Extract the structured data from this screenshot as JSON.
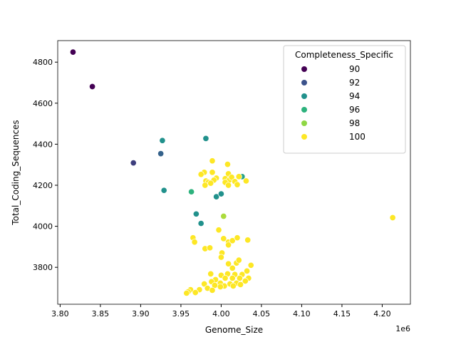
{
  "chart_data": {
    "type": "scatter",
    "xlabel": "Genome_Size",
    "ylabel": "Total_Coding_Sequences",
    "x_offset_label": "1e6",
    "xlim": [
      3.797,
      4.235
    ],
    "ylim": [
      3620,
      4905
    ],
    "x_ticks": [
      "3.80",
      "3.85",
      "3.90",
      "3.95",
      "4.00",
      "4.05",
      "4.10",
      "4.15",
      "4.20"
    ],
    "y_ticks": [
      "3800",
      "4000",
      "4200",
      "4400",
      "4600",
      "4800"
    ],
    "legend": {
      "title": "Completeness_Specific",
      "position": "top-right",
      "entries": [
        {
          "label": "90",
          "color": "#440154"
        },
        {
          "label": "92",
          "color": "#3b528b"
        },
        {
          "label": "94",
          "color": "#21918c"
        },
        {
          "label": "96",
          "color": "#2db27d"
        },
        {
          "label": "98",
          "color": "#8fd744"
        },
        {
          "label": "100",
          "color": "#fde725"
        }
      ]
    },
    "points": [
      [
        3.816,
        4849,
        90
      ],
      [
        3.84,
        4681,
        90
      ],
      [
        3.891,
        4309,
        91.5
      ],
      [
        3.925,
        4354,
        92.5
      ],
      [
        3.927,
        4418,
        94
      ],
      [
        3.981,
        4428,
        94
      ],
      [
        3.929,
        4175,
        94
      ],
      [
        3.969,
        4060,
        94
      ],
      [
        3.975,
        4014,
        94
      ],
      [
        3.994,
        4144,
        94
      ],
      [
        4.0,
        4158,
        94
      ],
      [
        4.026,
        4242,
        95
      ],
      [
        3.963,
        4168,
        96
      ],
      [
        4.003,
        4049,
        98.5
      ],
      [
        4.213,
        4042,
        100
      ],
      [
        3.989,
        4319,
        100
      ],
      [
        4.008,
        4302,
        100
      ],
      [
        3.979,
        4263,
        100
      ],
      [
        3.975,
        4253,
        100
      ],
      [
        3.989,
        4263,
        100
      ],
      [
        4.009,
        4256,
        100
      ],
      [
        3.994,
        4235,
        100
      ],
      [
        3.991,
        4225,
        100
      ],
      [
        3.981,
        4221,
        100
      ],
      [
        3.984,
        4214,
        100
      ],
      [
        3.987,
        4210,
        100
      ],
      [
        3.98,
        4200,
        100
      ],
      [
        4.005,
        4232,
        100
      ],
      [
        4.01,
        4225,
        100
      ],
      [
        4.013,
        4239,
        100
      ],
      [
        4.022,
        4242,
        100
      ],
      [
        4.005,
        4214,
        100
      ],
      [
        4.009,
        4200,
        100
      ],
      [
        4.017,
        4218,
        100
      ],
      [
        4.02,
        4203,
        100
      ],
      [
        4.031,
        4221,
        100
      ],
      [
        3.997,
        3982,
        100
      ],
      [
        3.965,
        3944,
        100
      ],
      [
        3.967,
        3923,
        100
      ],
      [
        3.98,
        3891,
        100
      ],
      [
        3.986,
        3895,
        100
      ],
      [
        4.003,
        3940,
        100
      ],
      [
        4.009,
        3923,
        100
      ],
      [
        4.014,
        3930,
        100
      ],
      [
        4.02,
        3944,
        100
      ],
      [
        4.033,
        3933,
        100
      ],
      [
        4.009,
        3909,
        100
      ],
      [
        4.001,
        3870,
        100
      ],
      [
        4.0,
        3849,
        100
      ],
      [
        4.009,
        3817,
        100
      ],
      [
        4.019,
        3821,
        100
      ],
      [
        4.022,
        3835,
        100
      ],
      [
        4.037,
        3810,
        100
      ],
      [
        4.014,
        3796,
        100
      ],
      [
        3.987,
        3768,
        100
      ],
      [
        4.0,
        3761,
        100
      ],
      [
        4.008,
        3768,
        100
      ],
      [
        4.017,
        3765,
        100
      ],
      [
        4.026,
        3765,
        100
      ],
      [
        4.032,
        3782,
        100
      ],
      [
        3.993,
        3740,
        100
      ],
      [
        4.005,
        3747,
        100
      ],
      [
        4.014,
        3747,
        100
      ],
      [
        4.023,
        3747,
        100
      ],
      [
        4.034,
        3747,
        100
      ],
      [
        3.988,
        3730,
        100
      ],
      [
        3.999,
        3723,
        100
      ],
      [
        4.011,
        3719,
        100
      ],
      [
        4.019,
        3723,
        100
      ],
      [
        4.03,
        3733,
        100
      ],
      [
        3.979,
        3719,
        100
      ],
      [
        3.992,
        3712,
        100
      ],
      [
        4.004,
        3709,
        100
      ],
      [
        4.015,
        3709,
        100
      ],
      [
        4.024,
        3716,
        100
      ],
      [
        3.973,
        3691,
        100
      ],
      [
        3.983,
        3698,
        100
      ],
      [
        3.962,
        3691,
        100
      ],
      [
        3.968,
        3677,
        100
      ],
      [
        3.959,
        3681,
        100
      ],
      [
        3.957,
        3674,
        100
      ],
      [
        3.989,
        3688,
        100
      ],
      [
        3.999,
        3705,
        100
      ]
    ]
  }
}
